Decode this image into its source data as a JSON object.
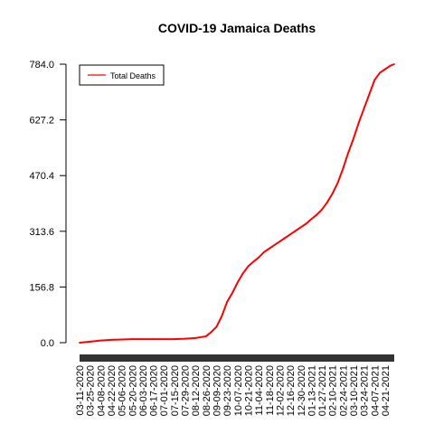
{
  "chart_data": {
    "type": "line",
    "title": "COVID-19 Jamaica Deaths",
    "xlabel": "",
    "ylabel": "",
    "ylim": [
      0,
      784
    ],
    "y_ticks": [
      "0.0",
      "156.8",
      "313.6",
      "470.4",
      "627.2",
      "784.0"
    ],
    "x_tick_labels": [
      "03-11-2020",
      "03-25-2020",
      "04-08-2020",
      "04-22-2020",
      "05-06-2020",
      "05-20-2020",
      "06-03-2020",
      "06-17-2020",
      "07-01-2020",
      "07-15-2020",
      "07-29-2020",
      "08-12-2020",
      "08-26-2020",
      "09-09-2020",
      "09-23-2020",
      "10-07-2020",
      "10-21-2020",
      "11-04-2020",
      "11-18-2020",
      "12-02-2020",
      "12-16-2020",
      "12-30-2020",
      "01-13-2021",
      "01-27-2021",
      "02-10-2021",
      "02-24-2021",
      "03-10-2021",
      "03-24-2021",
      "04-07-2021",
      "04-21-2021"
    ],
    "legend": {
      "placement": "top-left",
      "entries": [
        "Total Deaths"
      ]
    },
    "colors": {
      "series": "#ff0000",
      "axis": "#000000",
      "tick_band": "#333333"
    },
    "series": [
      {
        "name": "Total Deaths",
        "x": [
          "03-11-2020",
          "03-25-2020",
          "04-08-2020",
          "04-22-2020",
          "05-06-2020",
          "05-20-2020",
          "06-03-2020",
          "06-17-2020",
          "07-01-2020",
          "07-15-2020",
          "07-29-2020",
          "08-12-2020",
          "08-26-2020",
          "09-02-2020",
          "09-09-2020",
          "09-16-2020",
          "09-23-2020",
          "09-30-2020",
          "10-07-2020",
          "10-14-2020",
          "10-21-2020",
          "10-28-2020",
          "11-04-2020",
          "11-11-2020",
          "11-18-2020",
          "11-25-2020",
          "12-02-2020",
          "12-09-2020",
          "12-16-2020",
          "12-23-2020",
          "12-30-2020",
          "01-06-2021",
          "01-13-2021",
          "01-20-2021",
          "01-27-2021",
          "02-03-2021",
          "02-10-2021",
          "02-17-2021",
          "02-24-2021",
          "03-03-2021",
          "03-10-2021",
          "03-17-2021",
          "03-24-2021",
          "03-31-2021",
          "04-07-2021",
          "04-14-2021",
          "04-21-2021",
          "04-28-2021",
          "05-03-2021"
        ],
        "values": [
          0,
          3,
          6,
          8,
          9,
          10,
          10,
          10,
          10,
          10,
          11,
          13,
          18,
          30,
          45,
          75,
          115,
          140,
          170,
          195,
          215,
          228,
          240,
          255,
          265,
          275,
          285,
          295,
          305,
          315,
          325,
          335,
          348,
          360,
          375,
          395,
          420,
          450,
          490,
          535,
          575,
          620,
          660,
          700,
          740,
          760,
          770,
          780,
          784
        ]
      }
    ]
  }
}
